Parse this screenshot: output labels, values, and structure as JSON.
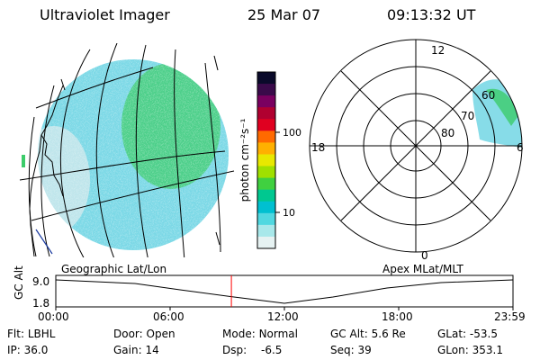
{
  "header": {
    "title": "Ultraviolet Imager",
    "date": "25 Mar 07",
    "time": "09:13:32 UT"
  },
  "colorbar": {
    "label": "photon cm⁻²s⁻¹",
    "ticks": [
      "100",
      "10"
    ],
    "colors": [
      "#0a0a2a",
      "#3a0a4a",
      "#7a0060",
      "#b00030",
      "#e00020",
      "#ff6a00",
      "#ffb000",
      "#e8e800",
      "#a0e000",
      "#40d040",
      "#00c890",
      "#00c0d0",
      "#50d8e0",
      "#a8e8ea",
      "#e6f2f2"
    ]
  },
  "polar": {
    "lat_labels": [
      "60",
      "70",
      "80"
    ],
    "mlt_labels": {
      "top": "12",
      "left": "18",
      "right": "6",
      "bottom": "0"
    }
  },
  "timeline": {
    "left_label": "Geographic Lat/Lon",
    "right_label": "Apex MLat/MLT",
    "yaxis_label": "GC Alt",
    "y_ticks": [
      "9.0",
      "1.8"
    ],
    "x_ticks": [
      "00:00",
      "06:00",
      "12:00",
      "18:00",
      "23:59"
    ],
    "marker_time": "09:13",
    "marker_color": "#ff0000"
  },
  "status": {
    "row1": [
      {
        "label": "Flt:",
        "value": "LBHL"
      },
      {
        "label": "Door:",
        "value": "Open"
      },
      {
        "label": "Mode:",
        "value": "Normal"
      },
      {
        "label": "GC Alt:",
        "value": "5.6 Re"
      },
      {
        "label": "GLat:",
        "value": "-53.5"
      }
    ],
    "row2": [
      {
        "label": "IP:",
        "value": "36.0"
      },
      {
        "label": "Gain:",
        "value": "14"
      },
      {
        "label": "Dsp:",
        "value": "-6.5"
      },
      {
        "label": "Seq:",
        "value": "39"
      },
      {
        "label": "GLon:",
        "value": "353.1"
      }
    ]
  },
  "colors": {
    "aurora_main": "#7ad8e6",
    "aurora_bright": "#3ccc6a",
    "aurora_faint": "#cfe9ec"
  }
}
